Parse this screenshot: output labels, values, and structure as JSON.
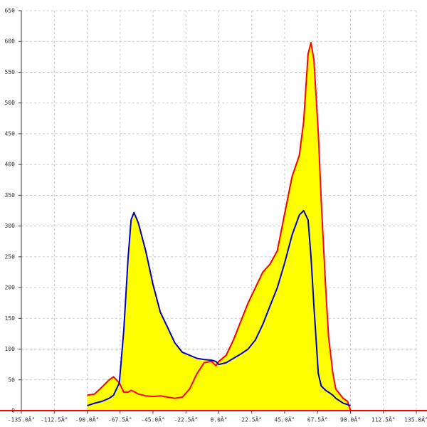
{
  "chart_data": {
    "type": "line",
    "x": [
      -90,
      -85,
      -80,
      -75,
      -72,
      -68,
      -65,
      -62,
      -60,
      -58,
      -55,
      -50,
      -45,
      -40,
      -35,
      -30,
      -25,
      -20,
      -15,
      -10,
      -5,
      -2,
      0,
      5,
      10,
      15,
      20,
      25,
      30,
      35,
      40,
      45,
      50,
      55,
      58,
      61,
      63,
      65,
      68,
      70,
      73,
      75,
      78,
      80,
      85,
      88,
      90
    ],
    "series": [
      {
        "color": "#ff0000",
        "values": [
          25,
          27,
          38,
          50,
          55,
          45,
          30,
          30,
          33,
          31,
          27,
          24,
          23,
          24,
          22,
          20,
          22,
          35,
          60,
          78,
          80,
          73,
          80,
          90,
          115,
          145,
          175,
          200,
          225,
          238,
          260,
          320,
          380,
          415,
          470,
          580,
          598,
          570,
          450,
          340,
          200,
          120,
          60,
          35,
          20,
          15,
          0
        ]
      },
      {
        "color": "#0000cc",
        "values": [
          8,
          12,
          15,
          20,
          25,
          45,
          130,
          250,
          310,
          322,
          305,
          260,
          205,
          160,
          135,
          110,
          95,
          90,
          85,
          83,
          82,
          80,
          75,
          78,
          85,
          92,
          100,
          115,
          140,
          170,
          200,
          240,
          285,
          318,
          325,
          310,
          250,
          170,
          60,
          40,
          33,
          30,
          25,
          20,
          12,
          10,
          8
        ]
      }
    ],
    "fill_color": "#ffff00",
    "xlim": [
      -135,
      135
    ],
    "xticks": [
      {
        "value": -135,
        "label": "-135.0Â°"
      },
      {
        "value": -112.5,
        "label": "-112.5Â°"
      },
      {
        "value": -90,
        "label": "-90.0Â°"
      },
      {
        "value": -67.5,
        "label": "-67.5Â°"
      },
      {
        "value": -45,
        "label": "-45.0Â°"
      },
      {
        "value": -22.5,
        "label": "-22.5Â°"
      },
      {
        "value": 0,
        "label": "0.0Â°"
      },
      {
        "value": 22.5,
        "label": "22.5Â°"
      },
      {
        "value": 45,
        "label": "45.0Â°"
      },
      {
        "value": 67.5,
        "label": "67.5Â°"
      },
      {
        "value": 90,
        "label": "90.0Â°"
      },
      {
        "value": 112.5,
        "label": "112.5Â°"
      },
      {
        "value": 135,
        "label": "135.0Â°"
      }
    ],
    "ylim": [
      0,
      650
    ],
    "yticks": [
      0,
      50,
      100,
      150,
      200,
      250,
      300,
      350,
      400,
      450,
      500,
      550,
      600,
      650
    ],
    "grid": true
  }
}
